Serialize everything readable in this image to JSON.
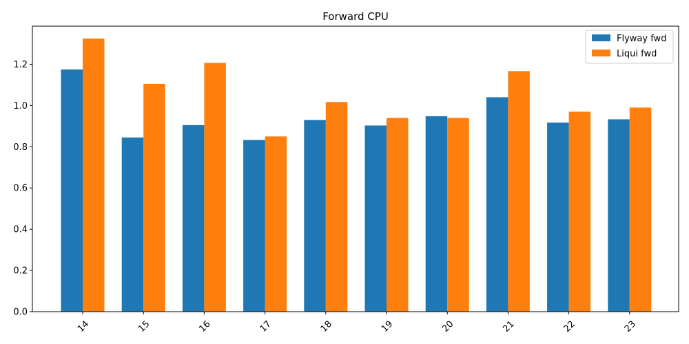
{
  "chart_data": {
    "type": "bar",
    "title": "Forward CPU",
    "xlabel": "",
    "ylabel": "",
    "categories": [
      "14",
      "15",
      "16",
      "17",
      "18",
      "19",
      "20",
      "21",
      "22",
      "23"
    ],
    "series": [
      {
        "name": "Flyway fwd",
        "color": "#1f77b4",
        "values": [
          1.175,
          0.845,
          0.905,
          0.833,
          0.93,
          0.903,
          0.948,
          1.04,
          0.917,
          0.933
        ]
      },
      {
        "name": "Liqui fwd",
        "color": "#ff7f0e",
        "values": [
          1.325,
          1.105,
          1.207,
          0.85,
          1.017,
          0.94,
          0.94,
          1.167,
          0.97,
          0.99
        ]
      }
    ],
    "ylim": [
      0,
      1.385
    ],
    "yticks": [
      0.0,
      0.2,
      0.4,
      0.6,
      0.8,
      1.0,
      1.2
    ],
    "ytick_labels": [
      "0.0",
      "0.2",
      "0.4",
      "0.6",
      "0.8",
      "1.0",
      "1.2"
    ],
    "xtick_rotation": 45,
    "grid": false,
    "legend_position": "upper right"
  }
}
